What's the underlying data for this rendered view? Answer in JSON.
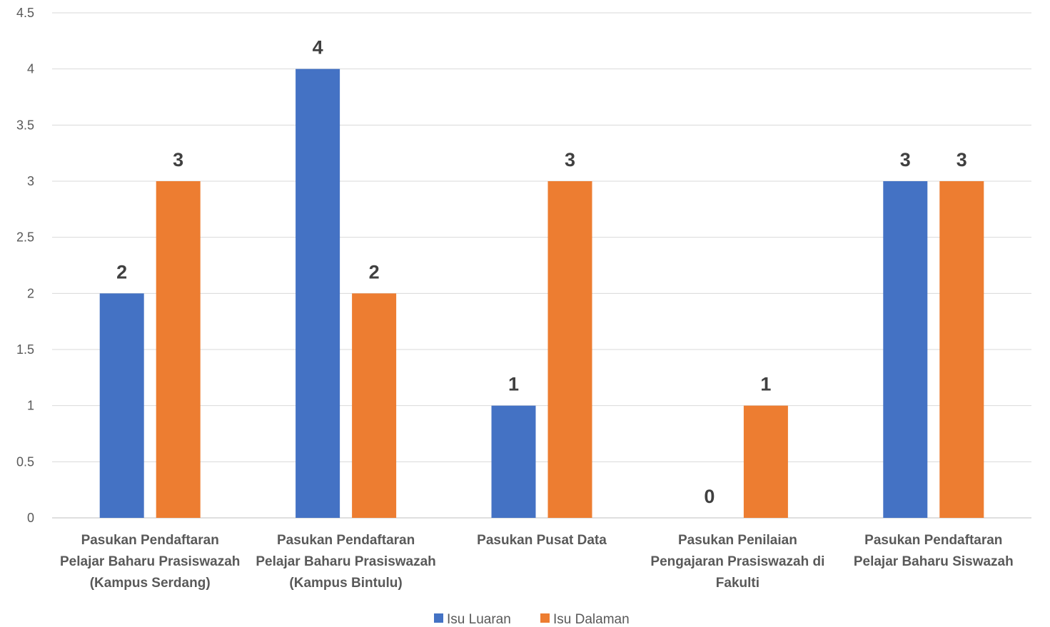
{
  "chart_data": {
    "type": "bar",
    "title": "",
    "xlabel": "",
    "ylabel": "",
    "ylim": [
      0,
      4.5
    ],
    "yticks": [
      "0",
      "0.5",
      "1",
      "1.5",
      "2",
      "2.5",
      "3",
      "3.5",
      "4",
      "4.5"
    ],
    "grid": true,
    "legend_position": "bottom",
    "categories": [
      [
        "Pasukan Pendaftaran",
        "Pelajar Baharu Prasiswazah",
        "(Kampus Serdang)"
      ],
      [
        "Pasukan Pendaftaran",
        "Pelajar Baharu Prasiswazah",
        "(Kampus Bintulu)"
      ],
      [
        "Pasukan Pusat Data"
      ],
      [
        "Pasukan Penilaian",
        "Pengajaran Prasiswazah di",
        "Fakulti"
      ],
      [
        "Pasukan Pendaftaran",
        "Pelajar Baharu Siswazah"
      ]
    ],
    "series": [
      {
        "name": "Isu Luaran",
        "color": "#4472C4",
        "values": [
          2,
          4,
          1,
          0,
          3
        ]
      },
      {
        "name": "Isu Dalaman",
        "color": "#ED7D31",
        "values": [
          3,
          2,
          3,
          1,
          3
        ]
      }
    ],
    "data_labels": true
  }
}
